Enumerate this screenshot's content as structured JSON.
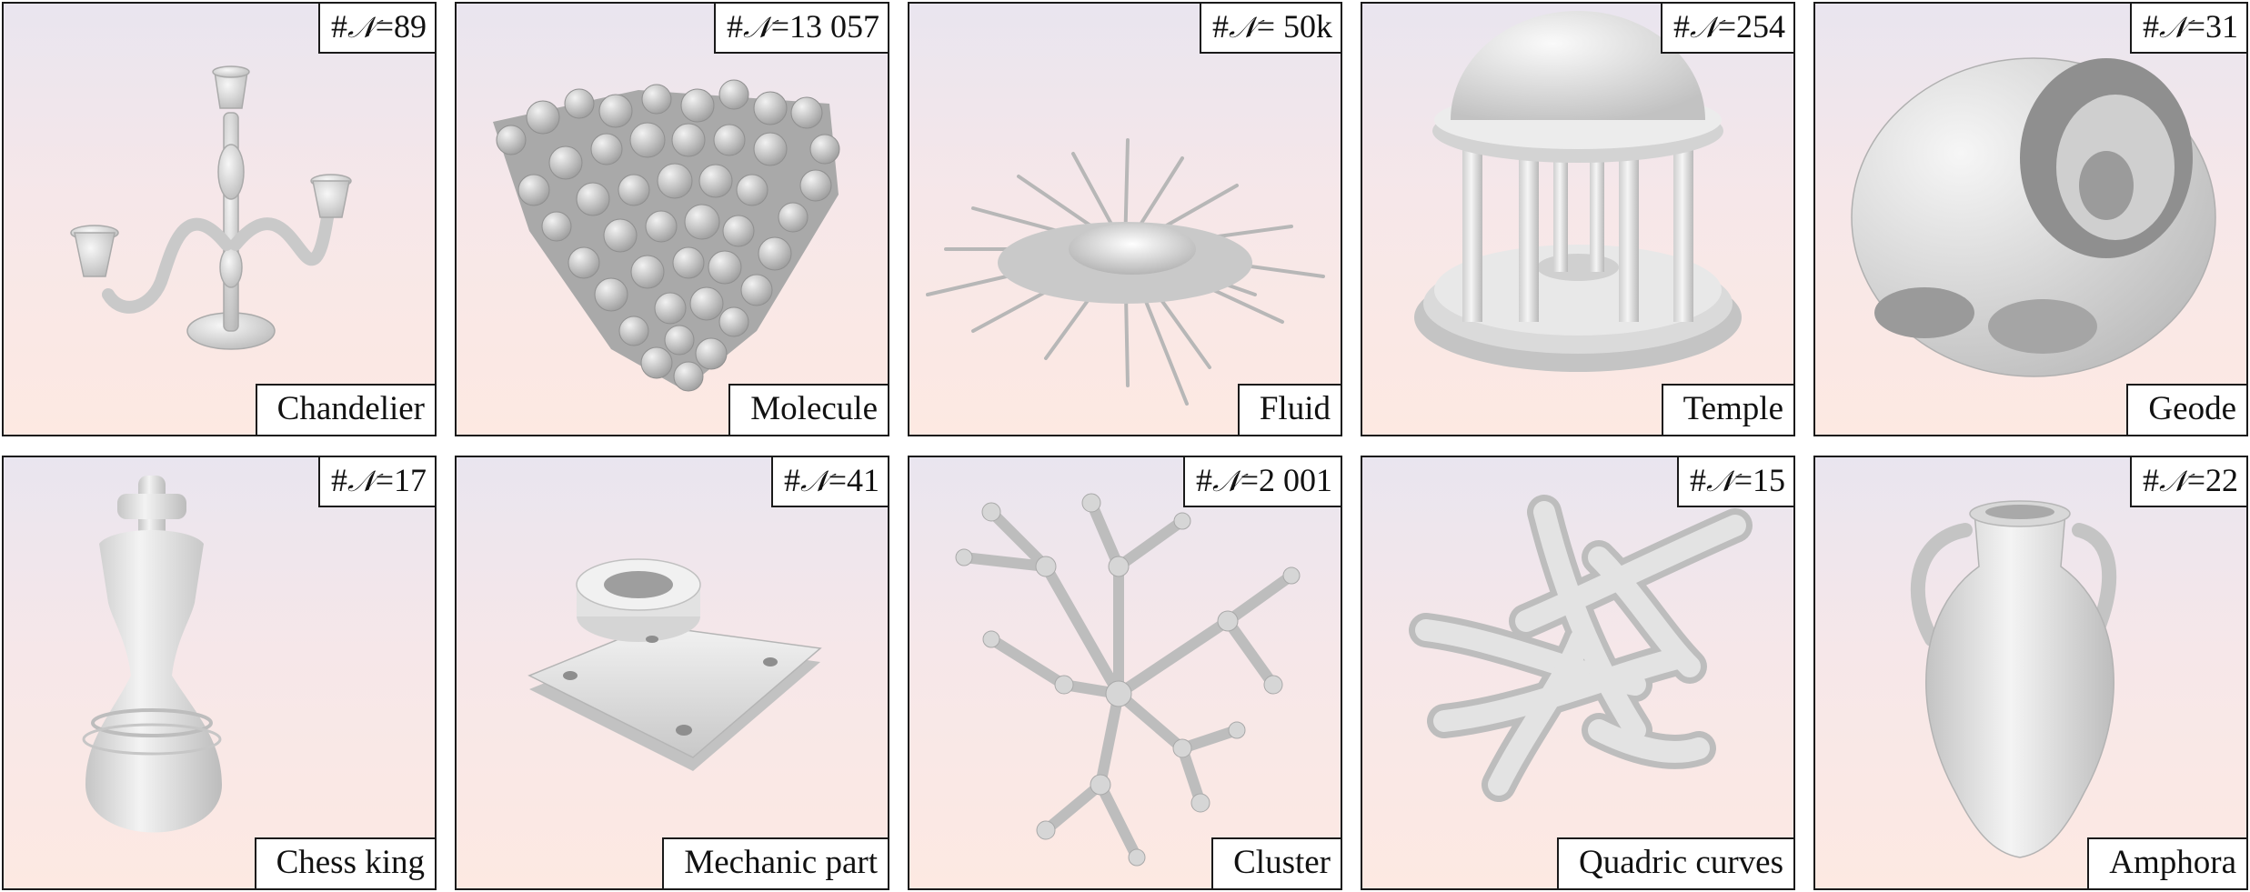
{
  "figure": {
    "panels": [
      {
        "id": "chandelier",
        "count_prefix": "#",
        "count_symbol": "𝒩",
        "count_value": "=89",
        "name": "Chandelier"
      },
      {
        "id": "molecule",
        "count_prefix": "#",
        "count_symbol": "𝒩",
        "count_value": "=13 057",
        "name": "Molecule"
      },
      {
        "id": "fluid",
        "count_prefix": "#",
        "count_symbol": "𝒩",
        "count_value": "= 50k",
        "name": "Fluid"
      },
      {
        "id": "temple",
        "count_prefix": "#",
        "count_symbol": "𝒩",
        "count_value": "=254",
        "name": "Temple"
      },
      {
        "id": "geode",
        "count_prefix": "#",
        "count_symbol": "𝒩",
        "count_value": "=31",
        "name": "Geode"
      },
      {
        "id": "chess-king",
        "count_prefix": "#",
        "count_symbol": "𝒩",
        "count_value": "=17",
        "name": "Chess king"
      },
      {
        "id": "mechanic-part",
        "count_prefix": "#",
        "count_symbol": "𝒩",
        "count_value": "=41",
        "name": "Mechanic part"
      },
      {
        "id": "cluster",
        "count_prefix": "#",
        "count_symbol": "𝒩",
        "count_value": "=2 001",
        "name": "Cluster"
      },
      {
        "id": "quadric-curves",
        "count_prefix": "#",
        "count_symbol": "𝒩",
        "count_value": "=15",
        "name": "Quadric curves"
      },
      {
        "id": "amphora",
        "count_prefix": "#",
        "count_symbol": "𝒩",
        "count_value": "=22",
        "name": "Amphora"
      }
    ]
  }
}
